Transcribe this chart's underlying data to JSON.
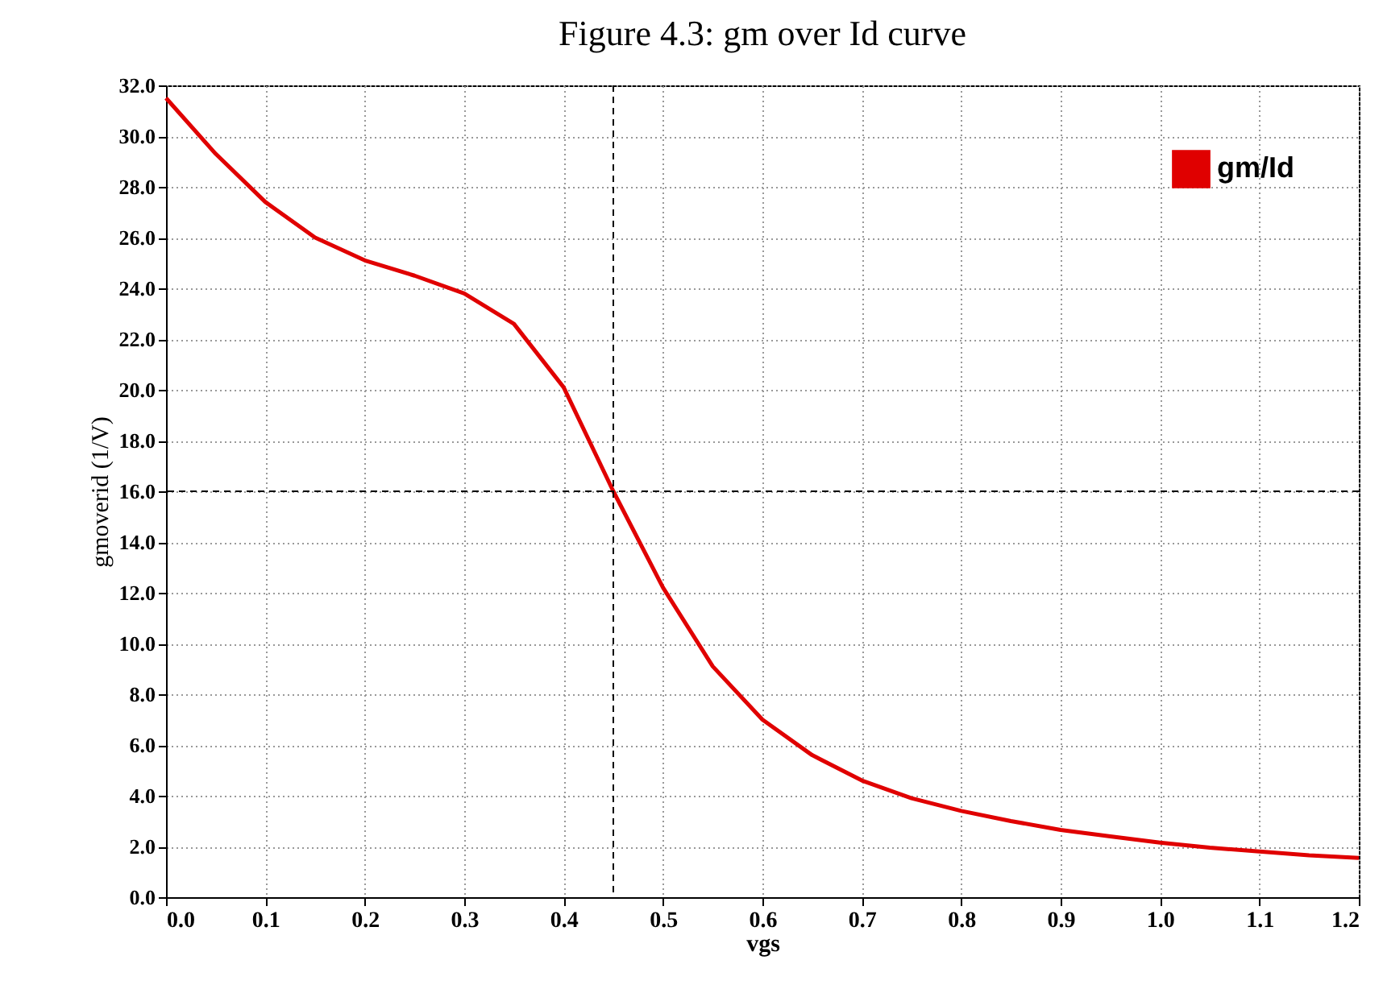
{
  "chart_data": {
    "type": "line",
    "title": "Figure 4.3: gm over Id curve",
    "xlabel": "vgs",
    "ylabel": "gmoverid (1/V)",
    "x": [
      0,
      0.05,
      0.1,
      0.15,
      0.2,
      0.25,
      0.3,
      0.35,
      0.4,
      0.45,
      0.5,
      0.55,
      0.6,
      0.65,
      0.7,
      0.75,
      0.8,
      0.85,
      0.9,
      0.95,
      1.0,
      1.05,
      1.1,
      1.15,
      1.2
    ],
    "series": [
      {
        "name": "gm/Id",
        "color": "#e00000",
        "values": [
          31.5,
          29.3,
          27.4,
          26.0,
          25.1,
          24.5,
          23.8,
          22.6,
          20.1,
          16.0,
          12.2,
          9.1,
          7.0,
          5.6,
          4.6,
          3.9,
          3.4,
          3.0,
          2.65,
          2.4,
          2.15,
          1.95,
          1.8,
          1.65,
          1.55
        ]
      }
    ],
    "xlim": [
      0,
      1.2
    ],
    "ylim": [
      0,
      32
    ],
    "xticks": [
      {
        "value": 0,
        "label": "0.0"
      },
      {
        "value": 0.1,
        "label": "0.1"
      },
      {
        "value": 0.2,
        "label": "0.2"
      },
      {
        "value": 0.3,
        "label": "0.3"
      },
      {
        "value": 0.4,
        "label": "0.4"
      },
      {
        "value": 0.5,
        "label": "0.5"
      },
      {
        "value": 0.6,
        "label": "0.6"
      },
      {
        "value": 0.7,
        "label": "0.7"
      },
      {
        "value": 0.8,
        "label": "0.8"
      },
      {
        "value": 0.9,
        "label": "0.9"
      },
      {
        "value": 1,
        "label": "1.0"
      },
      {
        "value": 1.1,
        "label": "1.1"
      },
      {
        "value": 1.2,
        "label": "1.2"
      }
    ],
    "yticks": [
      {
        "value": 0,
        "label": "0.0"
      },
      {
        "value": 2,
        "label": "2.0"
      },
      {
        "value": 4,
        "label": "4.0"
      },
      {
        "value": 6,
        "label": "6.0"
      },
      {
        "value": 8,
        "label": "8.0"
      },
      {
        "value": 10,
        "label": "10.0"
      },
      {
        "value": 12,
        "label": "12.0"
      },
      {
        "value": 14,
        "label": "14.0"
      },
      {
        "value": 16,
        "label": "16.0"
      },
      {
        "value": 18,
        "label": "18.0"
      },
      {
        "value": 20,
        "label": "20.0"
      },
      {
        "value": 22,
        "label": "22.0"
      },
      {
        "value": 24,
        "label": "24.0"
      },
      {
        "value": 26,
        "label": "26.0"
      },
      {
        "value": 28,
        "label": "28.0"
      },
      {
        "value": 30,
        "label": "30.0"
      },
      {
        "value": 32,
        "label": "32.0"
      }
    ],
    "ref_lines": [
      {
        "axis": "x",
        "value": 0.45,
        "color": "#000000",
        "line_style": "dashed"
      },
      {
        "axis": "y",
        "value": 16,
        "color": "#000000",
        "line_style": "dashed"
      }
    ],
    "grid": true,
    "legend": "top right",
    "marker": "none",
    "line_style": "solid"
  }
}
